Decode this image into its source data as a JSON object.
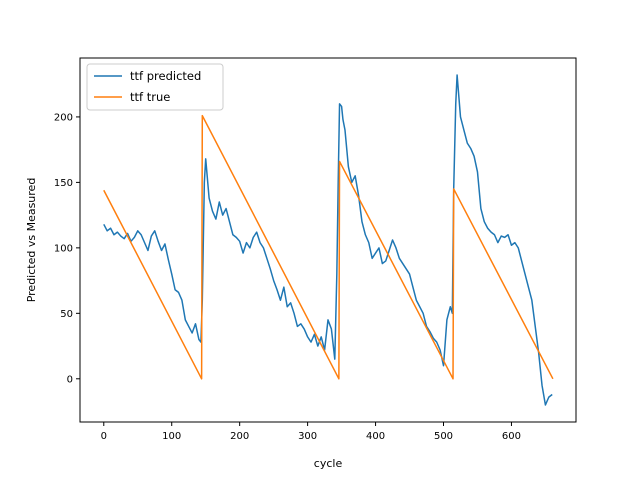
{
  "chart_data": {
    "type": "line",
    "xlabel": "cycle",
    "ylabel": "Predicted vs Measured",
    "xlim": [
      -35,
      695
    ],
    "ylim": [
      -33,
      245
    ],
    "xticks": [
      0,
      100,
      200,
      300,
      400,
      500,
      600
    ],
    "yticks": [
      0,
      50,
      100,
      150,
      200
    ],
    "grid": false,
    "legend": {
      "placement": "upper-left"
    },
    "series": [
      {
        "name": "ttf predicted",
        "color": "#1f77b4",
        "x": [
          0,
          5,
          10,
          15,
          20,
          25,
          30,
          35,
          40,
          45,
          50,
          55,
          60,
          65,
          70,
          75,
          80,
          85,
          90,
          95,
          100,
          105,
          110,
          115,
          120,
          125,
          130,
          135,
          140,
          143,
          145,
          148,
          150,
          155,
          160,
          165,
          170,
          175,
          180,
          185,
          190,
          195,
          200,
          205,
          210,
          215,
          220,
          225,
          230,
          235,
          240,
          245,
          250,
          255,
          260,
          265,
          270,
          275,
          280,
          285,
          290,
          295,
          300,
          305,
          310,
          315,
          320,
          325,
          330,
          335,
          340,
          343,
          345,
          347,
          350,
          352,
          355,
          360,
          365,
          370,
          375,
          380,
          385,
          390,
          395,
          400,
          405,
          410,
          415,
          420,
          425,
          430,
          435,
          440,
          445,
          450,
          455,
          460,
          465,
          470,
          475,
          480,
          485,
          490,
          495,
          500,
          505,
          510,
          513,
          515,
          518,
          520,
          525,
          530,
          535,
          540,
          545,
          550,
          555,
          560,
          565,
          570,
          575,
          580,
          585,
          590,
          595,
          600,
          605,
          610,
          615,
          620,
          625,
          630,
          635,
          640,
          645,
          650,
          655,
          660
        ],
        "y": [
          118,
          113,
          115,
          110,
          112,
          109,
          107,
          111,
          105,
          108,
          113,
          110,
          104,
          98,
          109,
          113,
          105,
          98,
          103,
          91,
          80,
          68,
          66,
          60,
          45,
          40,
          35,
          42,
          30,
          28,
          60,
          150,
          168,
          138,
          128,
          122,
          135,
          125,
          130,
          120,
          110,
          108,
          105,
          96,
          104,
          100,
          108,
          112,
          104,
          100,
          92,
          84,
          75,
          68,
          60,
          70,
          55,
          58,
          50,
          40,
          42,
          38,
          32,
          28,
          34,
          25,
          32,
          22,
          45,
          38,
          15,
          80,
          150,
          210,
          208,
          198,
          190,
          162,
          150,
          155,
          140,
          120,
          110,
          104,
          92,
          96,
          100,
          88,
          90,
          98,
          106,
          100,
          92,
          88,
          84,
          80,
          70,
          60,
          55,
          50,
          40,
          36,
          31,
          28,
          22,
          10,
          45,
          55,
          50,
          145,
          210,
          232,
          200,
          190,
          180,
          176,
          170,
          158,
          130,
          120,
          115,
          112,
          110,
          104,
          109,
          108,
          110,
          102,
          104,
          100,
          90,
          80,
          70,
          60,
          40,
          20,
          -5,
          -20,
          -14,
          -12
        ]
      },
      {
        "name": "ttf true",
        "color": "#ff7f0e",
        "x": [
          0,
          144,
          145,
          346,
          347,
          514,
          515,
          661
        ],
        "y": [
          144,
          0,
          201,
          0,
          166,
          0,
          145,
          0
        ]
      }
    ]
  }
}
